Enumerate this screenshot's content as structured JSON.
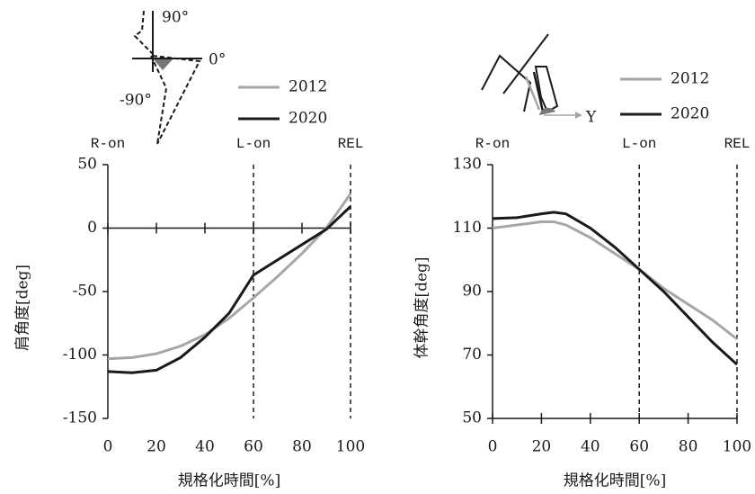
{
  "chart_data": [
    {
      "type": "line",
      "y_label": "肩角度[deg]",
      "x_label": "規格化時間[%]",
      "annotations": [
        "90°",
        "0°",
        "-90°"
      ],
      "x": [
        0,
        10,
        20,
        30,
        40,
        50,
        60,
        70,
        80,
        90,
        100
      ],
      "series": [
        {
          "name": "2012",
          "color": "#a6a6a6",
          "values": [
            -103,
            -102,
            -99,
            -93,
            -84,
            -71,
            -55,
            -38,
            -20,
            0,
            27
          ]
        },
        {
          "name": "2020",
          "color": "#1a1a1a",
          "values": [
            -113,
            -114,
            -112,
            -102,
            -86,
            -67,
            -37,
            -25,
            -13,
            -1,
            17
          ]
        }
      ],
      "events": [
        {
          "label": "R-on",
          "x": 0
        },
        {
          "label": "L-on",
          "x": 60
        },
        {
          "label": "REL",
          "x": 100
        }
      ],
      "xlim": [
        0,
        100
      ],
      "xticks": [
        0,
        20,
        40,
        60,
        80,
        100
      ],
      "ylim": [
        -150,
        50
      ],
      "yticks": [
        -150,
        -100,
        -50,
        0,
        50
      ],
      "x_axis_at": 0
    },
    {
      "type": "line",
      "y_label": "体幹角度[deg]",
      "x_label": "規格化時間[%]",
      "annotations": [
        "Y"
      ],
      "x": [
        0,
        10,
        20,
        25,
        30,
        40,
        50,
        60,
        70,
        80,
        90,
        100
      ],
      "series": [
        {
          "name": "2012",
          "color": "#a6a6a6",
          "values": [
            110,
            111,
            112,
            112,
            111,
            107,
            102,
            97,
            91,
            86,
            81,
            75
          ]
        },
        {
          "name": "2020",
          "color": "#1a1a1a",
          "values": [
            113,
            113.3,
            114.5,
            115,
            114.5,
            110,
            104,
            97,
            90,
            82,
            74,
            67
          ]
        }
      ],
      "events": [
        {
          "label": "R-on",
          "x": 0
        },
        {
          "label": "L-on",
          "x": 60
        },
        {
          "label": "REL",
          "x": 100
        }
      ],
      "xlim": [
        0,
        100
      ],
      "xticks": [
        0,
        20,
        40,
        60,
        80,
        100
      ],
      "ylim": [
        50,
        130
      ],
      "yticks": [
        50,
        70,
        90,
        110,
        130
      ],
      "x_axis_at": 50
    }
  ]
}
